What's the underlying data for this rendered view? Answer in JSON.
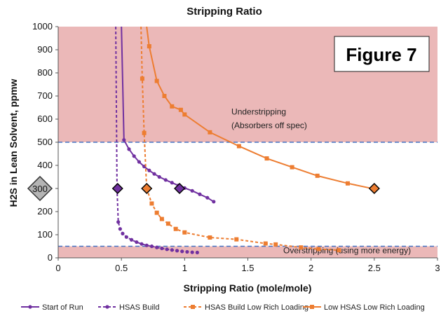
{
  "chart_data": {
    "type": "line",
    "title": "Stripping Ratio",
    "xlabel": "Stripping Ratio (mole/mole)",
    "ylabel": "H2S in Lean Solvent, ppmw",
    "xlim": [
      0,
      3
    ],
    "ylim": [
      0,
      1000
    ],
    "x_ticks": [
      0,
      0.5,
      1,
      1.5,
      2,
      2.5,
      3
    ],
    "y_ticks": [
      0,
      100,
      200,
      300,
      400,
      500,
      600,
      700,
      800,
      900,
      1000
    ],
    "grid": false,
    "legend_position": "bottom",
    "figure_label": "Figure 7",
    "zones": [
      {
        "name": "understripping",
        "y_from": 500,
        "y_to": 1000,
        "color": "#ebb8b8"
      },
      {
        "name": "overstripping",
        "y_from": 0,
        "y_to": 50,
        "color": "#ebb8b8"
      }
    ],
    "reference_lines": [
      {
        "y": 500,
        "color": "#4472c4",
        "style": "dashed"
      },
      {
        "y": 50,
        "color": "#4472c4",
        "style": "dashed"
      }
    ],
    "annotations": [
      {
        "text": "Understripping",
        "x": 1.37,
        "y": 620
      },
      {
        "text": "(Absorbers off spec)",
        "x": 1.37,
        "y": 560
      },
      {
        "text": "Overstripping (using more energy)",
        "x": 1.78,
        "y": 20
      }
    ],
    "operating_point_label": {
      "text": "300",
      "y": 300
    },
    "series": [
      {
        "name": "Start of Run",
        "color": "#7030a0",
        "style": "solid",
        "marker": "circle",
        "x": [
          0.5,
          0.52,
          0.56,
          0.6,
          0.64,
          0.68,
          0.72,
          0.76,
          0.8,
          0.85,
          0.9,
          0.95,
          1.0,
          1.06,
          1.12,
          1.18,
          1.23
        ],
        "y": [
          1000,
          510,
          470,
          440,
          415,
          395,
          378,
          363,
          350,
          337,
          325,
          313,
          302,
          290,
          275,
          260,
          243
        ]
      },
      {
        "name": "HSAS Build",
        "color": "#7030a0",
        "style": "dashed",
        "marker": "circle",
        "x": [
          0.455,
          0.465,
          0.475,
          0.49,
          0.51,
          0.54,
          0.58,
          0.62,
          0.66,
          0.7,
          0.74,
          0.78,
          0.82,
          0.86,
          0.9,
          0.94,
          0.98,
          1.02,
          1.06,
          1.1
        ],
        "y": [
          1000,
          300,
          155,
          125,
          105,
          90,
          78,
          68,
          60,
          54,
          50,
          45,
          41,
          37,
          34,
          31,
          28,
          26,
          24,
          23
        ]
      },
      {
        "name": "HSAS Build Low Rich Loading",
        "color": "#ed7d31",
        "style": "dashed",
        "marker": "square",
        "x": [
          0.655,
          0.665,
          0.68,
          0.7,
          0.74,
          0.78,
          0.82,
          0.87,
          0.93,
          1.0,
          1.2,
          1.41,
          1.64,
          1.72,
          1.92,
          2.06,
          2.22
        ],
        "y": [
          1000,
          775,
          540,
          300,
          235,
          195,
          168,
          148,
          125,
          110,
          88,
          80,
          62,
          58,
          45,
          38,
          33
        ]
      },
      {
        "name": "Low HSAS Low Rich Loading",
        "color": "#ed7d31",
        "style": "solid",
        "marker": "square",
        "x": [
          0.7,
          0.72,
          0.78,
          0.84,
          0.9,
          0.97,
          1.0,
          1.2,
          1.43,
          1.65,
          1.85,
          2.05,
          2.29,
          2.5
        ],
        "y": [
          1000,
          915,
          765,
          700,
          655,
          640,
          620,
          543,
          483,
          430,
          392,
          355,
          322,
          298
        ]
      }
    ],
    "highlight_points": [
      {
        "x": 0.47,
        "y": 300,
        "color": "#7030a0"
      },
      {
        "x": 0.96,
        "y": 300,
        "color": "#7030a0"
      },
      {
        "x": 0.7,
        "y": 300,
        "color": "#ed7d31"
      },
      {
        "x": 2.5,
        "y": 300,
        "color": "#ed7d31"
      }
    ]
  }
}
